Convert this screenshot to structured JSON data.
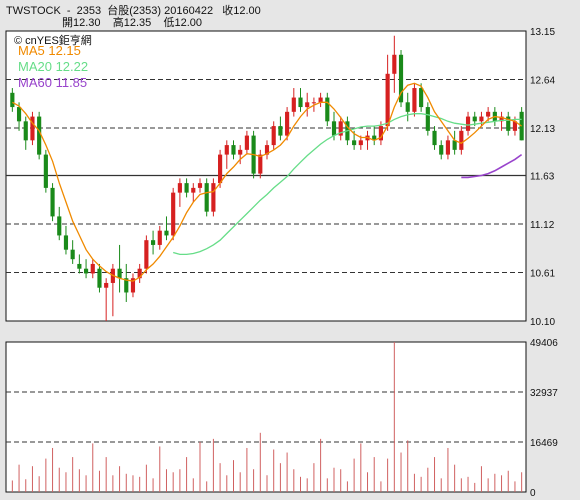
{
  "header": {
    "line1": "TWSTOCK  -  2353  台股(2353) 20160422   收12.00",
    "line2": "開12.30    高12.35    低12.00"
  },
  "legend": {
    "source": "© cnYES鉅亨網",
    "ma5": "MA5 12.15",
    "ma20": "MA20 12.22",
    "ma60": "MA60 11.85"
  },
  "colors": {
    "up": "#d62020",
    "down": "#1a8a1a",
    "ma5": "#f08a00",
    "ma20": "#66dd88",
    "ma60": "#9944cc",
    "volume": "#d06060"
  },
  "chart_data": [
    {
      "type": "candlestick",
      "ylim": [
        10.1,
        13.15
      ],
      "yticks": [
        "13.15",
        "12.64",
        "12.13",
        "11.63",
        "11.12",
        "10.61",
        "10.10"
      ],
      "grid": true,
      "ohlc": [
        [
          12.5,
          12.55,
          12.3,
          12.35
        ],
        [
          12.35,
          12.4,
          12.1,
          12.2
        ],
        [
          12.2,
          12.25,
          11.9,
          12.0
        ],
        [
          12.0,
          12.3,
          11.95,
          12.25
        ],
        [
          12.25,
          12.3,
          11.8,
          11.85
        ],
        [
          11.85,
          11.9,
          11.45,
          11.5
        ],
        [
          11.5,
          11.55,
          11.15,
          11.2
        ],
        [
          11.2,
          11.3,
          10.95,
          11.0
        ],
        [
          11.0,
          11.1,
          10.8,
          10.85
        ],
        [
          10.85,
          10.95,
          10.7,
          10.75
        ],
        [
          10.7,
          10.8,
          10.6,
          10.65
        ],
        [
          10.65,
          10.75,
          10.55,
          10.6
        ],
        [
          10.6,
          10.75,
          10.55,
          10.7
        ],
        [
          10.65,
          10.7,
          10.4,
          10.45
        ],
        [
          10.45,
          10.55,
          10.1,
          10.5
        ],
        [
          10.5,
          10.7,
          10.15,
          10.65
        ],
        [
          10.65,
          10.9,
          10.4,
          10.55
        ],
        [
          10.55,
          10.7,
          10.3,
          10.4
        ],
        [
          10.4,
          10.6,
          10.35,
          10.55
        ],
        [
          10.55,
          10.7,
          10.5,
          10.65
        ],
        [
          10.65,
          11.0,
          10.6,
          10.95
        ],
        [
          10.95,
          11.05,
          10.8,
          10.9
        ],
        [
          10.9,
          11.1,
          10.85,
          11.05
        ],
        [
          11.05,
          11.2,
          10.95,
          11.0
        ],
        [
          11.0,
          11.5,
          10.95,
          11.45
        ],
        [
          11.45,
          11.6,
          11.3,
          11.55
        ],
        [
          11.55,
          11.6,
          11.4,
          11.45
        ],
        [
          11.45,
          11.55,
          11.35,
          11.5
        ],
        [
          11.5,
          11.6,
          11.45,
          11.55
        ],
        [
          11.55,
          11.6,
          11.2,
          11.25
        ],
        [
          11.25,
          11.6,
          11.2,
          11.55
        ],
        [
          11.55,
          11.9,
          11.5,
          11.85
        ],
        [
          11.85,
          12.0,
          11.7,
          11.95
        ],
        [
          11.95,
          12.0,
          11.8,
          11.85
        ],
        [
          11.85,
          11.95,
          11.75,
          11.9
        ],
        [
          11.9,
          12.1,
          11.85,
          12.05
        ],
        [
          12.05,
          12.1,
          11.6,
          11.65
        ],
        [
          11.65,
          11.9,
          11.6,
          11.85
        ],
        [
          11.85,
          12.0,
          11.8,
          11.95
        ],
        [
          11.95,
          12.2,
          11.9,
          12.15
        ],
        [
          12.15,
          12.25,
          12.0,
          12.05
        ],
        [
          12.05,
          12.35,
          12.0,
          12.3
        ],
        [
          12.3,
          12.55,
          12.25,
          12.45
        ],
        [
          12.45,
          12.55,
          12.3,
          12.35
        ],
        [
          12.35,
          12.5,
          12.25,
          12.4
        ],
        [
          12.4,
          12.45,
          12.3,
          12.4
        ],
        [
          12.4,
          12.5,
          12.35,
          12.45
        ],
        [
          12.45,
          12.5,
          12.15,
          12.2
        ],
        [
          12.2,
          12.3,
          12.0,
          12.05
        ],
        [
          12.05,
          12.25,
          12.0,
          12.2
        ],
        [
          12.2,
          12.25,
          11.95,
          12.0
        ],
        [
          12.0,
          12.1,
          11.9,
          11.95
        ],
        [
          11.95,
          12.05,
          11.9,
          12.0
        ],
        [
          12.0,
          12.1,
          11.9,
          12.05
        ],
        [
          12.05,
          12.15,
          11.95,
          12.0
        ],
        [
          12.0,
          12.2,
          11.95,
          12.15
        ],
        [
          12.15,
          12.9,
          12.1,
          12.7
        ],
        [
          12.7,
          13.1,
          12.5,
          12.9
        ],
        [
          12.9,
          12.95,
          12.35,
          12.4
        ],
        [
          12.4,
          12.5,
          12.2,
          12.3
        ],
        [
          12.3,
          12.6,
          12.25,
          12.55
        ],
        [
          12.55,
          12.6,
          12.3,
          12.35
        ],
        [
          12.35,
          12.4,
          12.05,
          12.1
        ],
        [
          12.1,
          12.15,
          11.9,
          11.95
        ],
        [
          11.95,
          12.0,
          11.8,
          11.85
        ],
        [
          11.85,
          12.05,
          11.8,
          12.0
        ],
        [
          12.0,
          12.1,
          11.85,
          11.9
        ],
        [
          11.9,
          12.15,
          11.85,
          12.1
        ],
        [
          12.1,
          12.3,
          12.05,
          12.25
        ],
        [
          12.25,
          12.3,
          12.15,
          12.2
        ],
        [
          12.2,
          12.3,
          12.15,
          12.25
        ],
        [
          12.25,
          12.35,
          12.2,
          12.3
        ],
        [
          12.3,
          12.35,
          12.15,
          12.2
        ],
        [
          12.2,
          12.3,
          12.1,
          12.25
        ],
        [
          12.25,
          12.3,
          12.05,
          12.1
        ],
        [
          12.1,
          12.25,
          12.05,
          12.2
        ],
        [
          12.3,
          12.35,
          12.0,
          12.0
        ]
      ],
      "ma5": [
        12.4,
        12.36,
        12.28,
        12.18,
        12.1,
        11.95,
        11.78,
        11.55,
        11.35,
        11.15,
        11.0,
        10.85,
        10.75,
        10.68,
        10.62,
        10.58,
        10.55,
        10.53,
        10.52,
        10.56,
        10.64,
        10.7,
        10.78,
        10.88,
        10.98,
        11.1,
        11.24,
        11.35,
        11.43,
        11.45,
        11.46,
        11.55,
        11.65,
        11.72,
        11.8,
        11.86,
        11.85,
        11.83,
        11.86,
        11.9,
        11.95,
        12.03,
        12.15,
        12.25,
        12.33,
        12.37,
        12.4,
        12.4,
        12.33,
        12.24,
        12.14,
        12.07,
        12.03,
        12.03,
        12.0,
        12.03,
        12.15,
        12.35,
        12.5,
        12.58,
        12.6,
        12.57,
        12.45,
        12.3,
        12.2,
        12.1,
        12.0,
        11.97,
        12.02,
        12.08,
        12.15,
        12.22,
        12.25,
        12.24,
        12.22,
        12.2,
        12.15
      ],
      "ma20": [
        null,
        null,
        null,
        null,
        null,
        null,
        null,
        null,
        null,
        null,
        null,
        null,
        null,
        null,
        null,
        null,
        null,
        null,
        null,
        null,
        null,
        null,
        null,
        null,
        10.82,
        10.8,
        10.8,
        10.81,
        10.83,
        10.86,
        10.9,
        10.95,
        11.02,
        11.09,
        11.16,
        11.23,
        11.3,
        11.37,
        11.43,
        11.5,
        11.56,
        11.62,
        11.7,
        11.77,
        11.84,
        11.9,
        11.96,
        12.01,
        12.05,
        12.08,
        12.1,
        12.12,
        12.14,
        12.15,
        12.15,
        12.16,
        12.18,
        12.22,
        12.25,
        12.27,
        12.28,
        12.28,
        12.27,
        12.25,
        12.23,
        12.2,
        12.18,
        12.17,
        12.16,
        12.17,
        12.18,
        12.19,
        12.2,
        12.21,
        12.21,
        12.22,
        12.22
      ],
      "ma60": [
        null,
        null,
        null,
        null,
        null,
        null,
        null,
        null,
        null,
        null,
        null,
        null,
        null,
        null,
        null,
        null,
        null,
        null,
        null,
        null,
        null,
        null,
        null,
        null,
        null,
        null,
        null,
        null,
        null,
        null,
        null,
        null,
        null,
        null,
        null,
        null,
        null,
        null,
        null,
        null,
        null,
        null,
        null,
        null,
        null,
        null,
        null,
        null,
        null,
        null,
        null,
        null,
        null,
        null,
        null,
        null,
        null,
        null,
        null,
        null,
        null,
        null,
        null,
        null,
        null,
        null,
        null,
        11.61,
        11.61,
        11.62,
        11.63,
        11.65,
        11.68,
        11.72,
        11.76,
        11.8,
        11.85
      ]
    },
    {
      "type": "bar",
      "name": "volume",
      "ylim": [
        0,
        49406
      ],
      "yticks": [
        "49406",
        "32937",
        "16469",
        "0"
      ],
      "grid": true,
      "values": [
        3800,
        9000,
        4200,
        8500,
        5200,
        11000,
        14500,
        8000,
        6500,
        11500,
        7500,
        5500,
        16000,
        7000,
        11500,
        5500,
        8500,
        6000,
        5500,
        5000,
        9000,
        4500,
        15000,
        7500,
        6500,
        7500,
        11500,
        4500,
        16500,
        3500,
        17500,
        9500,
        5500,
        10500,
        6500,
        14500,
        7500,
        19500,
        5500,
        14000,
        9500,
        13000,
        7500,
        5000,
        4500,
        9500,
        17500,
        4500,
        8000,
        7500,
        3500,
        11000,
        16000,
        6500,
        11500,
        3500,
        11000,
        49406,
        13000,
        17000,
        6000,
        5000,
        8000,
        11500,
        4500,
        14500,
        9000,
        4500,
        5000,
        3000,
        8500,
        4500,
        6000,
        5500,
        7000,
        3500,
        6500
      ]
    }
  ]
}
